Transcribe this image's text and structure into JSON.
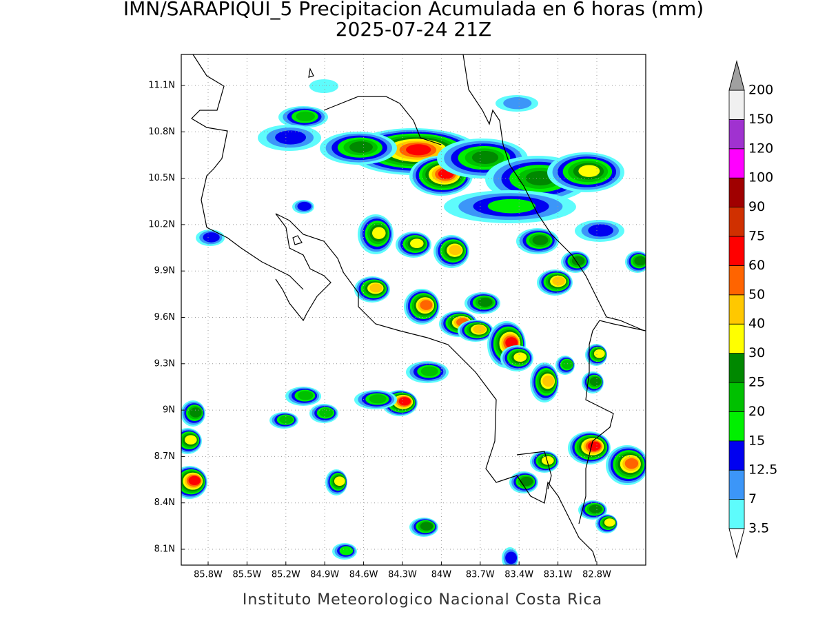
{
  "title": "IMN/SARAPIQUI_5 Precipitacion Acumulada en 6 horas (mm)",
  "subtitle": "2025-07-24 21Z",
  "footer": "Instituto Meteorologico Nacional Costa Rica",
  "map": {
    "lon_labels": [
      "85.8W",
      "85.5W",
      "85.2W",
      "84.9W",
      "84.6W",
      "84.3W",
      "84W",
      "83.7W",
      "83.4W",
      "83.1W",
      "82.8W"
    ],
    "lat_labels": [
      "11.1N",
      "10.8N",
      "10.5N",
      "10.2N",
      "9.9N",
      "9.6N",
      "9.3N",
      "9N",
      "8.7N",
      "8.4N",
      "8.1N"
    ]
  },
  "colorbar": {
    "levels": [
      3.5,
      7,
      12.5,
      15,
      20,
      25,
      30,
      40,
      50,
      60,
      75,
      90,
      100,
      120,
      150,
      200
    ],
    "colors": [
      "#5efcfc",
      "#3c96f8",
      "#0000f0",
      "#00f000",
      "#00c000",
      "#008800",
      "#ffff00",
      "#ffc800",
      "#ff6400",
      "#ff0000",
      "#d03000",
      "#a00000",
      "#ff00ff",
      "#a032d0",
      "#f0f0f0"
    ],
    "under_color": "#ffffff",
    "over_color": "#a0a0a0"
  }
}
